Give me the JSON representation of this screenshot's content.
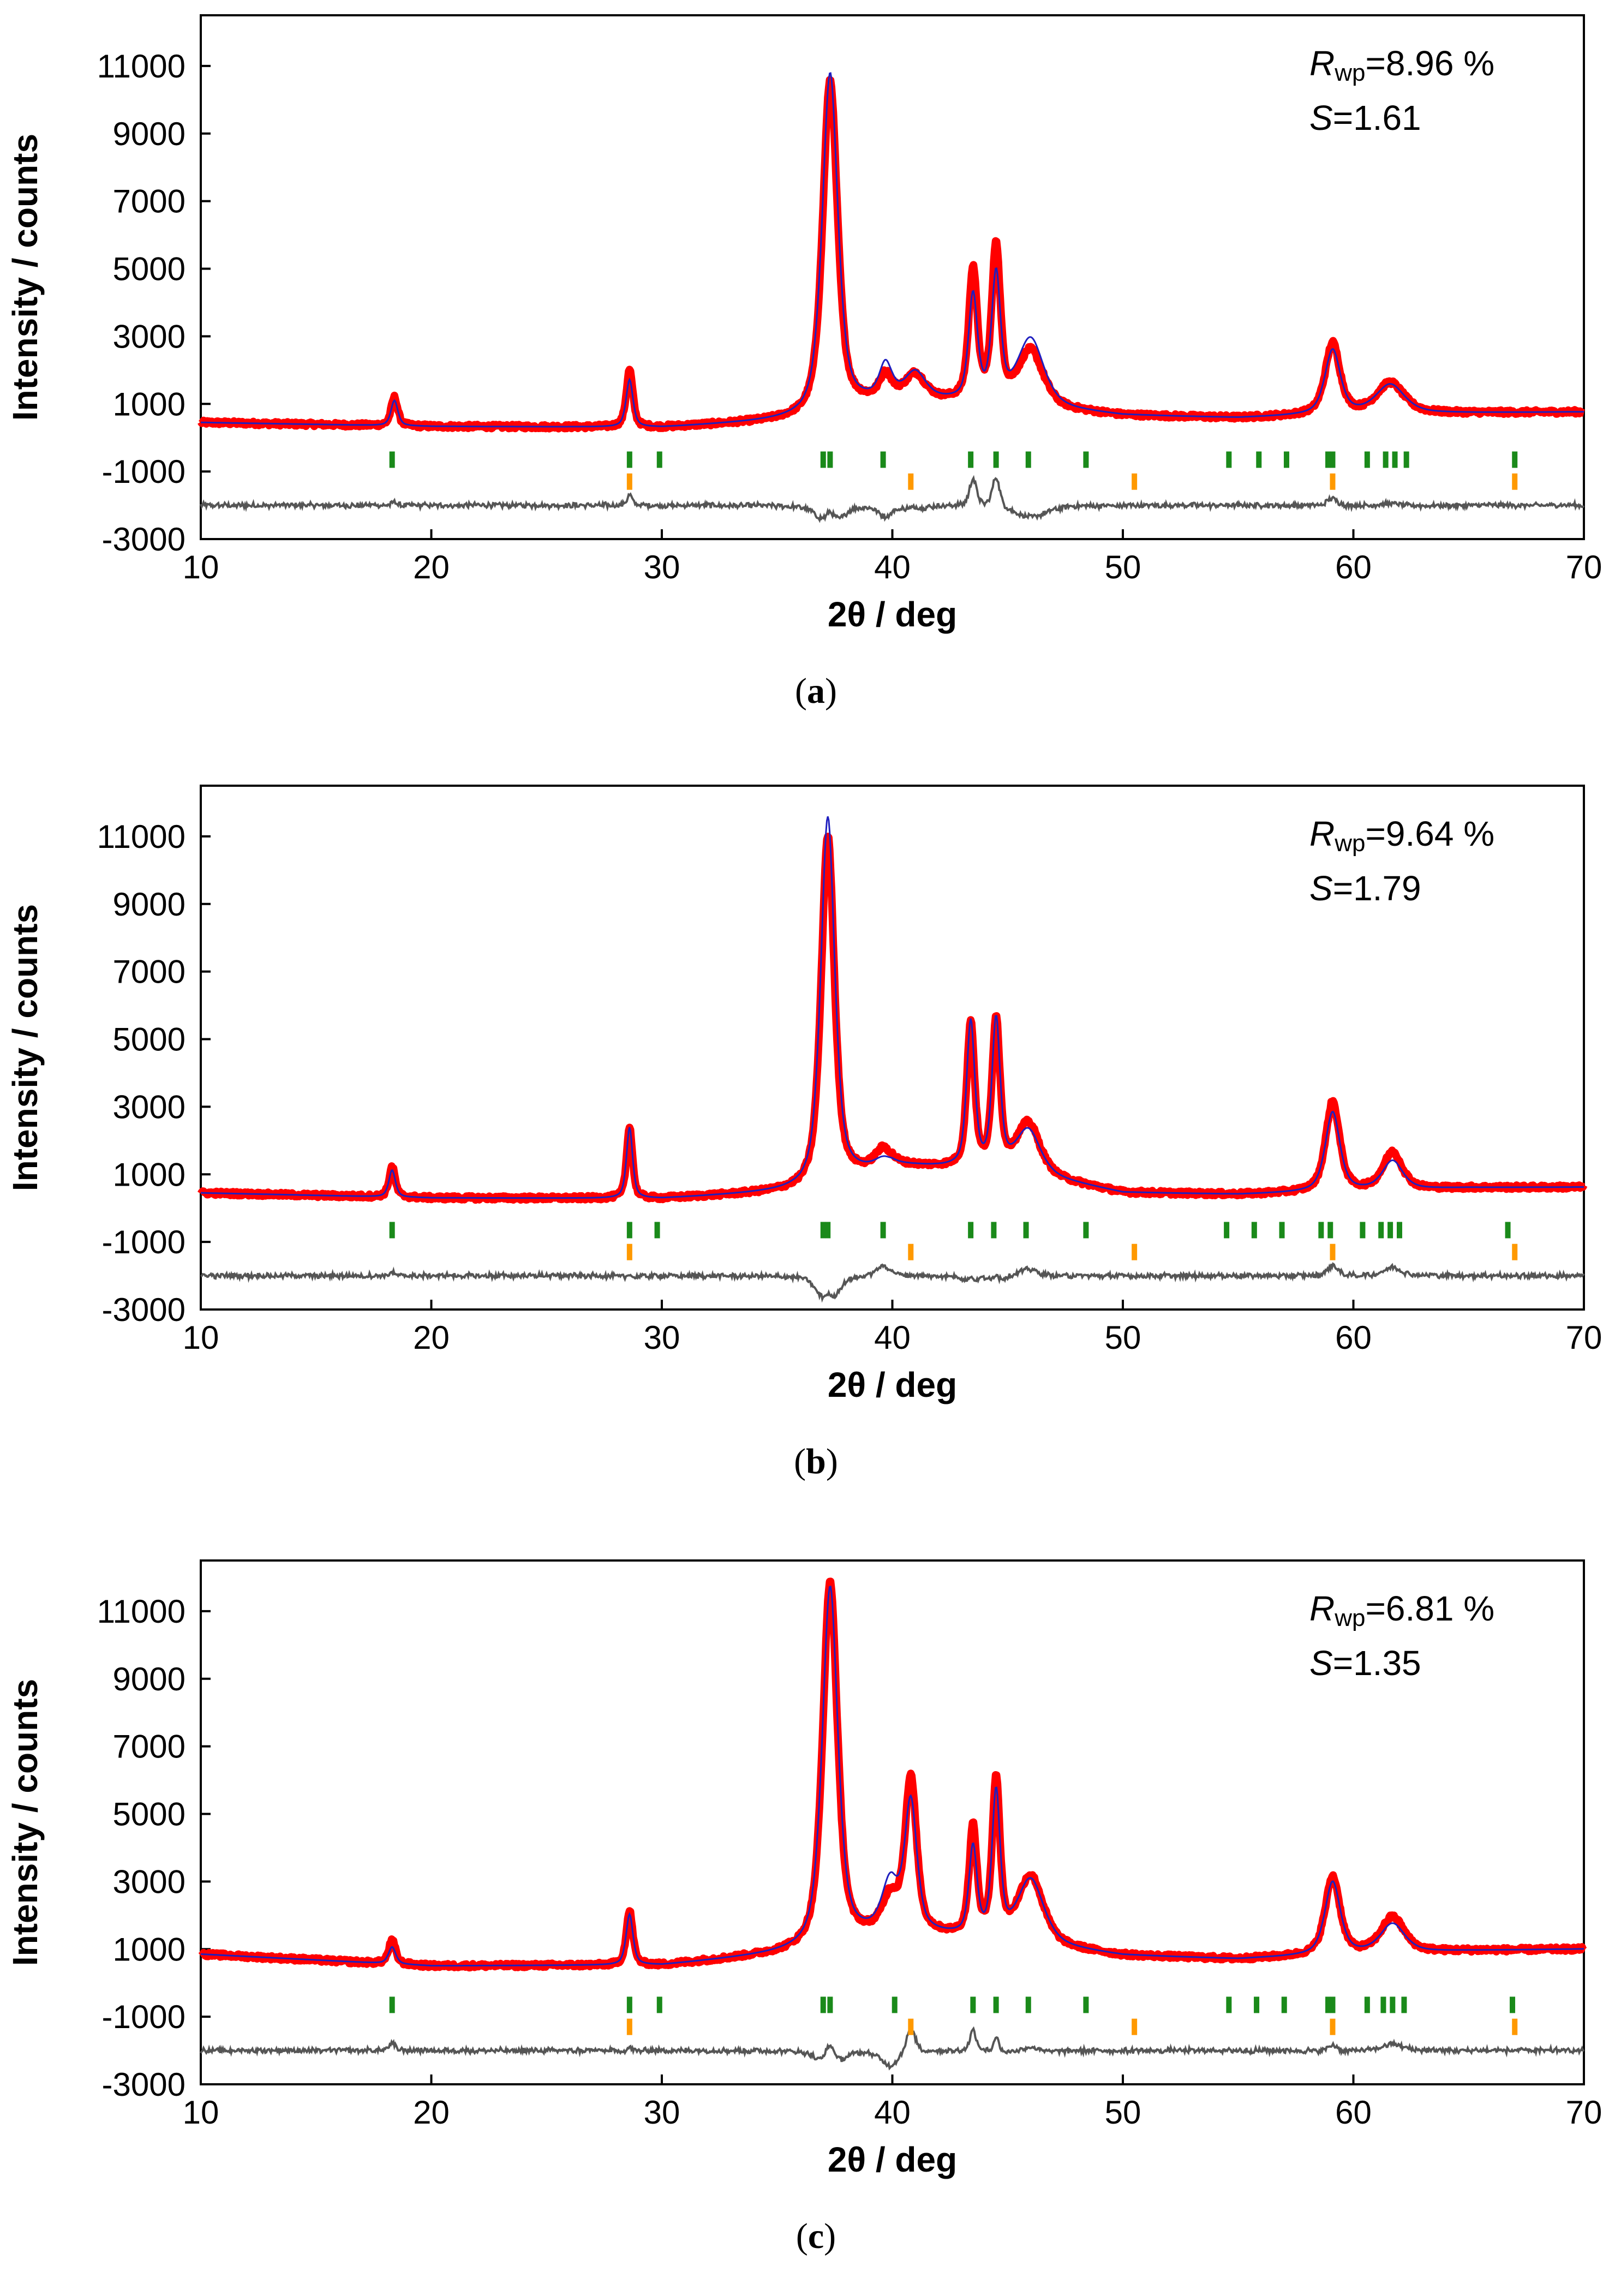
{
  "figure": {
    "panels_count": 3
  },
  "chart_data": [
    {
      "type": "line",
      "panel_label": "a",
      "xlabel": "2θ / deg",
      "ylabel": "Intensity / counts",
      "xlim": [
        10,
        70
      ],
      "ylim": [
        -3000,
        12500
      ],
      "xticks": [
        "10",
        "20",
        "30",
        "40",
        "50",
        "60",
        "70"
      ],
      "yticks": [
        "-3000",
        "-1000",
        "1000",
        "3000",
        "5000",
        "7000",
        "9000",
        "11000"
      ],
      "stats": {
        "rwp_symbol": "R",
        "rwp_sub": "wp",
        "rwp_value": "=8.96 %",
        "s_symbol": "S",
        "s_value": "=1.61"
      },
      "colors": {
        "observed": "#ff0000",
        "calculated": "#1f1fbf",
        "difference": "#555555",
        "phase1_ticks": "#1a8a1a",
        "phase2_ticks": "#ff9900"
      },
      "background": {
        "x": [
          10,
          20,
          30,
          36,
          40,
          45,
          50,
          55,
          60,
          65,
          70
        ],
        "y": [
          450,
          330,
          300,
          520,
          1150,
          950,
          650,
          580,
          700,
          730,
          760
        ]
      },
      "peaks": [
        {
          "pos": 18.4,
          "obs": 850,
          "calc": 750,
          "w": 0.17
        },
        {
          "pos": 28.6,
          "obs": 1700,
          "calc": 1400,
          "w": 0.17
        },
        {
          "pos": 37.3,
          "obs": 9850,
          "calc": 10050,
          "w": 0.38
        },
        {
          "pos": 39.7,
          "obs": 650,
          "calc": 950,
          "w": 0.3
        },
        {
          "pos": 41.0,
          "obs": 700,
          "calc": 750,
          "w": 0.5
        },
        {
          "pos": 43.5,
          "obs": 3900,
          "calc": 3100,
          "w": 0.22
        },
        {
          "pos": 44.5,
          "obs": 4600,
          "calc": 3700,
          "w": 0.22
        },
        {
          "pos": 46.0,
          "obs": 1650,
          "calc": 2000,
          "w": 0.65
        },
        {
          "pos": 59.1,
          "obs": 2100,
          "calc": 1900,
          "w": 0.38
        },
        {
          "pos": 61.6,
          "obs": 900,
          "calc": 850,
          "w": 0.7
        }
      ],
      "diff_offset": -2000,
      "phase1_positions": [
        18.3,
        28.6,
        29.9,
        37.0,
        37.3,
        39.6,
        43.4,
        44.5,
        45.9,
        48.4,
        54.6,
        55.9,
        57.1,
        58.9,
        59.1,
        60.6,
        61.4,
        61.8,
        62.3,
        67.0
      ],
      "phase1_level": -650,
      "phase2_positions": [
        28.6,
        40.8,
        50.5,
        59.1,
        67.0
      ],
      "phase2_level": -1300
    },
    {
      "type": "line",
      "panel_label": "b",
      "xlabel": "2θ / deg",
      "ylabel": "Intensity / counts",
      "xlim": [
        10,
        70
      ],
      "ylim": [
        -3000,
        12500
      ],
      "xticks": [
        "10",
        "20",
        "30",
        "40",
        "50",
        "60",
        "70"
      ],
      "yticks": [
        "-3000",
        "-1000",
        "1000",
        "3000",
        "5000",
        "7000",
        "9000",
        "11000"
      ],
      "stats": {
        "rwp_symbol": "R",
        "rwp_sub": "wp",
        "rwp_value": "=9.64 %",
        "s_symbol": "S",
        "s_value": "=1.79"
      },
      "colors": {
        "observed": "#ff0000",
        "calculated": "#1f1fbf",
        "difference": "#555555",
        "phase1_ticks": "#1a8a1a",
        "phase2_ticks": "#ff9900"
      },
      "background": {
        "x": [
          10,
          20,
          30,
          36,
          40,
          45,
          50,
          55,
          60,
          65,
          70
        ],
        "y": [
          450,
          300,
          280,
          500,
          1250,
          1100,
          450,
          400,
          500,
          600,
          620
        ]
      },
      "peaks": [
        {
          "pos": 18.3,
          "obs": 900,
          "calc": 800,
          "w": 0.16
        },
        {
          "pos": 28.6,
          "obs": 2150,
          "calc": 2100,
          "w": 0.15
        },
        {
          "pos": 37.2,
          "obs": 10300,
          "calc": 10850,
          "w": 0.34
        },
        {
          "pos": 39.6,
          "obs": 500,
          "calc": 200,
          "w": 0.4
        },
        {
          "pos": 43.4,
          "obs": 4300,
          "calc": 4300,
          "w": 0.2
        },
        {
          "pos": 44.5,
          "obs": 4400,
          "calc": 4350,
          "w": 0.2
        },
        {
          "pos": 45.9,
          "obs": 1500,
          "calc": 1300,
          "w": 0.6
        },
        {
          "pos": 59.1,
          "obs": 2650,
          "calc": 2350,
          "w": 0.36
        },
        {
          "pos": 61.7,
          "obs": 1100,
          "calc": 850,
          "w": 0.5
        }
      ],
      "diff_offset": -2000,
      "phase1_positions": [
        18.3,
        28.6,
        29.8,
        37.0,
        37.2,
        39.6,
        43.4,
        44.4,
        45.8,
        48.4,
        54.5,
        55.7,
        56.9,
        58.6,
        59.0,
        60.4,
        61.2,
        61.6,
        62.0,
        66.7
      ],
      "phase1_level": -650,
      "phase2_positions": [
        28.6,
        40.8,
        50.5,
        59.1,
        67.0
      ],
      "phase2_level": -1300
    },
    {
      "type": "line",
      "panel_label": "c",
      "xlabel": "2θ / deg",
      "ylabel": "Intensity / counts",
      "xlim": [
        10,
        70
      ],
      "ylim": [
        -3000,
        12500
      ],
      "xticks": [
        "10",
        "20",
        "30",
        "40",
        "50",
        "60",
        "70"
      ],
      "yticks": [
        "-3000",
        "-1000",
        "1000",
        "3000",
        "5000",
        "7000",
        "9000",
        "11000"
      ],
      "stats": {
        "rwp_symbol": "R",
        "rwp_sub": "wp",
        "rwp_value": "=6.81 %",
        "s_symbol": "S",
        "s_value": "=1.35"
      },
      "colors": {
        "observed": "#ff0000",
        "calculated": "#1f1fbf",
        "difference": "#555555",
        "phase1_ticks": "#1a8a1a",
        "phase2_ticks": "#ff9900"
      },
      "background": {
        "x": [
          10,
          20,
          30,
          36,
          40,
          45,
          50,
          55,
          60,
          65,
          70
        ],
        "y": [
          850,
          500,
          520,
          900,
          1500,
          1200,
          800,
          700,
          850,
          950,
          1000
        ]
      },
      "peaks": [
        {
          "pos": 18.3,
          "obs": 700,
          "calc": 500,
          "w": 0.18
        },
        {
          "pos": 28.6,
          "obs": 1600,
          "calc": 1500,
          "w": 0.17
        },
        {
          "pos": 37.3,
          "obs": 10750,
          "calc": 10600,
          "w": 0.38
        },
        {
          "pos": 39.9,
          "obs": 900,
          "calc": 1350,
          "w": 0.4
        },
        {
          "pos": 40.8,
          "obs": 4500,
          "calc": 3800,
          "w": 0.3
        },
        {
          "pos": 43.5,
          "obs": 3200,
          "calc": 2600,
          "w": 0.2
        },
        {
          "pos": 44.5,
          "obs": 4650,
          "calc": 4250,
          "w": 0.2
        },
        {
          "pos": 46.0,
          "obs": 2000,
          "calc": 1900,
          "w": 0.65
        },
        {
          "pos": 59.1,
          "obs": 2300,
          "calc": 2150,
          "w": 0.38
        },
        {
          "pos": 61.7,
          "obs": 1050,
          "calc": 850,
          "w": 0.6
        }
      ],
      "diff_offset": -2000,
      "phase1_positions": [
        18.3,
        28.6,
        29.9,
        37.0,
        37.3,
        40.1,
        43.5,
        44.5,
        45.9,
        48.4,
        54.6,
        55.8,
        57.0,
        58.9,
        59.1,
        60.6,
        61.3,
        61.7,
        62.2,
        66.9
      ],
      "phase1_level": -650,
      "phase2_positions": [
        28.6,
        40.8,
        50.5,
        59.1,
        67.0
      ],
      "phase2_level": -1300
    }
  ]
}
